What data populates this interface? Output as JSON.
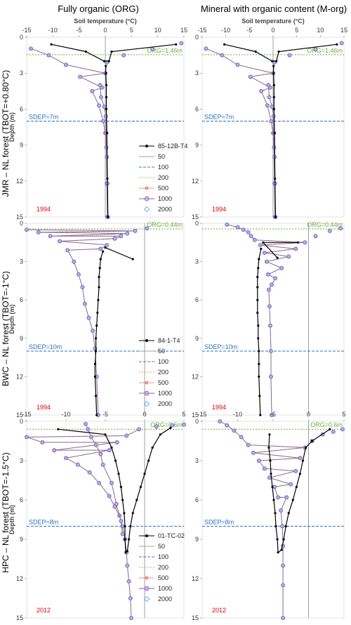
{
  "figure": {
    "col_titles": [
      "Fully organic (ORG)",
      "Mineral with organic content (M-org)"
    ],
    "row_titles": [
      "JMR – NL forest (TBOT=+0.80°C)",
      "BWC – NL forest (TBOT=-1°C)",
      "HPC – NL forest (TBOT=-1.5°C)"
    ]
  },
  "colors": {
    "observed": "#000000",
    "line_50": "#a0a0a0",
    "line_100": "#3a7dd0",
    "line_200": "#f0a030",
    "line_500": "#e03030",
    "marker_1000": "#8a5cc0",
    "marker_2000": "#4aa0e8",
    "org_line": "#6aaa3a",
    "sdep_line": "#2a70c0",
    "year_text": "#e00000"
  },
  "chart_data": [
    {
      "type": "line",
      "panel": "JMR-ORG",
      "title": "Soil temperature (°C)",
      "ylabel": "Depth (m)",
      "xlim": [
        -15,
        15
      ],
      "ylim": [
        0,
        15
      ],
      "xticks": [
        -15,
        -10,
        -5,
        0,
        5,
        10,
        15
      ],
      "yticks": [
        0,
        3,
        6,
        9,
        12,
        15
      ],
      "org_depth": 1.46,
      "org_label": "ORG=1.46m",
      "sdep_depth": 7,
      "sdep_label": "SDEP=7m",
      "year": "1994",
      "legend": [
        "85-12B-T4",
        "50",
        "100",
        "200",
        "500",
        "1000",
        "2000"
      ],
      "observed": {
        "name": "85-12B-T4",
        "points": [
          [
            -10.3,
            0.6
          ],
          [
            -3.7,
            1.2
          ],
          [
            -0.2,
            2.0
          ],
          [
            0.1,
            2.4
          ],
          [
            0.1,
            3.0
          ],
          [
            0.2,
            4.0
          ],
          [
            0.2,
            5.0
          ],
          [
            0.2,
            6.0
          ],
          [
            0.3,
            8.0
          ],
          [
            0.4,
            11.8
          ],
          [
            0.5,
            15.0
          ],
          [
            0.7,
            2.0
          ],
          [
            1.2,
            1.2
          ],
          [
            13.5,
            0.6
          ]
        ],
        "path_order": [
          0,
          1,
          2,
          11,
          12,
          13
        ]
      },
      "simulated": [
        [
          -14.2,
          0.95
        ],
        [
          -10.8,
          1.5
        ],
        [
          -7.5,
          2.3
        ],
        [
          -4.8,
          3.3
        ],
        [
          -2.5,
          4.5
        ],
        [
          -1.2,
          5.7
        ],
        [
          -0.4,
          7.0
        ],
        [
          0.0,
          8.0
        ],
        [
          0.2,
          9.2
        ],
        [
          0.3,
          12.2
        ],
        [
          0.4,
          15.0
        ],
        [
          -0.6,
          4.2
        ],
        [
          0.0,
          3.0
        ],
        [
          0.3,
          2.1
        ],
        [
          3.5,
          1.5
        ],
        [
          9.0,
          1.0
        ],
        [
          14.5,
          0.5
        ]
      ],
      "sim_center": [
        [
          -1.0,
          4.0
        ],
        [
          -0.8,
          5.0
        ],
        [
          -0.2,
          5.8
        ],
        [
          0.1,
          6.6
        ],
        [
          0.2,
          8.0
        ],
        [
          0.3,
          10.0
        ],
        [
          0.4,
          12.2
        ],
        [
          0.5,
          15.0
        ]
      ]
    },
    {
      "type": "line",
      "panel": "JMR-Morg",
      "title": "Soil temperature (°C)",
      "ylabel": "",
      "xlim": [
        -15,
        15
      ],
      "ylim": [
        0,
        15
      ],
      "xticks": [
        -15,
        -10,
        -5,
        0,
        5,
        10,
        15
      ],
      "yticks": [
        0,
        3,
        6,
        9,
        12,
        15
      ],
      "org_depth": 1.46,
      "org_label": "ORG=1.46m",
      "sdep_depth": 7,
      "sdep_label": "SDEP=7m",
      "year": "1994",
      "legend": [],
      "observed": {
        "name": "85-12B-T4",
        "points": [
          [
            -10.3,
            0.6
          ],
          [
            -3.7,
            1.2
          ],
          [
            -0.2,
            2.0
          ],
          [
            0.1,
            2.4
          ],
          [
            0.1,
            3.0
          ],
          [
            0.2,
            4.0
          ],
          [
            0.2,
            5.0
          ],
          [
            0.2,
            6.0
          ],
          [
            0.3,
            8.0
          ],
          [
            0.4,
            11.8
          ],
          [
            0.5,
            15.0
          ],
          [
            0.7,
            2.0
          ],
          [
            1.2,
            1.2
          ],
          [
            13.5,
            0.6
          ]
        ],
        "path_order": [
          0,
          1,
          2,
          11,
          12,
          13
        ]
      },
      "simulated": [
        [
          -14.2,
          0.95
        ],
        [
          -10.8,
          1.5
        ],
        [
          -7.5,
          2.3
        ],
        [
          -4.8,
          3.3
        ],
        [
          -2.5,
          4.5
        ],
        [
          -1.2,
          5.7
        ],
        [
          -0.4,
          7.0
        ],
        [
          0.0,
          8.0
        ],
        [
          0.2,
          9.2
        ],
        [
          0.3,
          12.2
        ],
        [
          0.4,
          15.0
        ],
        [
          -0.6,
          4.2
        ],
        [
          0.0,
          3.0
        ],
        [
          0.3,
          2.1
        ],
        [
          3.5,
          1.5
        ],
        [
          9.0,
          1.0
        ],
        [
          14.5,
          0.5
        ]
      ],
      "sim_center": [
        [
          -1.0,
          4.0
        ],
        [
          -0.8,
          5.0
        ],
        [
          -0.2,
          5.8
        ],
        [
          0.1,
          6.6
        ],
        [
          0.2,
          8.0
        ],
        [
          0.3,
          10.0
        ],
        [
          0.4,
          12.2
        ],
        [
          0.5,
          15.0
        ]
      ]
    },
    {
      "type": "line",
      "panel": "BWC-ORG",
      "title": "",
      "ylabel": "Depth (m)",
      "xlim": [
        -15,
        5
      ],
      "ylim": [
        0,
        15
      ],
      "xticks": [],
      "yticks": [
        0,
        3,
        6,
        9,
        12,
        15
      ],
      "org_depth": 0.44,
      "org_label": "ORG=0.44m",
      "sdep_depth": 10,
      "sdep_label": "SDEP=10m",
      "year": "1994",
      "legend": [
        "84-1-T4",
        "50",
        "100",
        "200",
        "500",
        "1000",
        "2000"
      ],
      "observed": {
        "name": "84-1-T4",
        "points": [
          [
            -5.0,
            1.9
          ],
          [
            -5.3,
            2.2
          ],
          [
            -5.6,
            2.8
          ],
          [
            -5.7,
            3.5
          ],
          [
            -5.8,
            4.2
          ],
          [
            -5.8,
            5.0
          ],
          [
            -5.9,
            6.0
          ],
          [
            -6.0,
            7.0
          ],
          [
            -6.1,
            8.0
          ],
          [
            -6.2,
            9.0
          ],
          [
            -6.2,
            10.0
          ],
          [
            -6.3,
            11.0
          ],
          [
            -6.3,
            12.0
          ],
          [
            -6.2,
            13.5
          ],
          [
            -6.1,
            15.0
          ],
          [
            -1.5,
            2.8
          ]
        ],
        "path_order": [
          15,
          0
        ]
      },
      "simulated": [
        [
          -15.0,
          0.5
        ],
        [
          -13.5,
          0.7
        ],
        [
          -12.0,
          1.0
        ],
        [
          -10.8,
          1.4
        ],
        [
          -9.8,
          2.1
        ],
        [
          -9.0,
          3.0
        ],
        [
          -8.4,
          4.0
        ],
        [
          -7.9,
          5.0
        ],
        [
          -7.6,
          6.3
        ],
        [
          -7.1,
          7.4
        ],
        [
          -6.6,
          8.4
        ],
        [
          -6.3,
          9.8
        ],
        [
          -6.1,
          12.0
        ],
        [
          -5.9,
          15.0
        ],
        [
          -5.6,
          2.0
        ],
        [
          -4.8,
          1.7
        ],
        [
          -3.8,
          1.2
        ],
        [
          -3.0,
          1.0
        ],
        [
          -2.2,
          0.8
        ],
        [
          -1.2,
          0.6
        ],
        [
          0.3,
          0.4
        ]
      ]
    },
    {
      "type": "line",
      "panel": "BWC-Morg",
      "title": "",
      "ylabel": "",
      "xlim": [
        -15,
        5
      ],
      "ylim": [
        0,
        15
      ],
      "xticks": [],
      "yticks": [
        0,
        3,
        6,
        9,
        12,
        15
      ],
      "org_depth": 0.44,
      "org_label": "ORG=0.44m",
      "sdep_depth": 10,
      "sdep_label": "SDEP=10m",
      "year": "1994",
      "legend": [],
      "observed": {
        "name": "84-1-T4",
        "points": [
          [
            -6.4,
            1.5
          ],
          [
            -6.7,
            2.0
          ],
          [
            -7.0,
            2.8
          ],
          [
            -7.1,
            3.5
          ],
          [
            -7.2,
            4.2
          ],
          [
            -7.2,
            5.0
          ],
          [
            -7.2,
            6.0
          ],
          [
            -7.2,
            7.0
          ],
          [
            -7.1,
            8.0
          ],
          [
            -7.1,
            9.0
          ],
          [
            -7.0,
            10.0
          ],
          [
            -7.0,
            11.0
          ],
          [
            -7.0,
            12.0
          ],
          [
            -6.9,
            13.5
          ],
          [
            -6.8,
            15.0
          ],
          [
            -1.5,
            1.5
          ],
          [
            -4.4,
            2.7
          ]
        ],
        "path_order": [
          15,
          0,
          16
        ]
      },
      "simulated": [
        [
          -11.5,
          0.1
        ],
        [
          -10.0,
          0.3
        ],
        [
          -9.2,
          0.5
        ],
        [
          -8.5,
          0.7
        ],
        [
          -8.1,
          1.0
        ],
        [
          -7.6,
          1.3
        ],
        [
          -6.8,
          1.7
        ],
        [
          -6.2,
          2.3
        ],
        [
          -5.9,
          3.0
        ],
        [
          -5.7,
          4.0
        ],
        [
          -5.6,
          5.2
        ],
        [
          -5.5,
          6.5
        ],
        [
          -5.4,
          8.0
        ],
        [
          -5.3,
          10.0
        ],
        [
          -5.3,
          12.0
        ],
        [
          -5.2,
          15.0
        ],
        [
          -5.2,
          4.8
        ],
        [
          -4.7,
          4.3
        ],
        [
          -3.8,
          3.5
        ],
        [
          -2.8,
          2.6
        ],
        [
          -1.8,
          2.0
        ],
        [
          -0.5,
          1.5
        ],
        [
          1.0,
          1.0
        ],
        [
          3.0,
          0.6
        ],
        [
          4.5,
          0.4
        ]
      ]
    },
    {
      "type": "line",
      "panel": "HPC-ORG",
      "title": "",
      "ylabel": "Depth (m)",
      "xlim": [
        -15,
        5
      ],
      "ylim": [
        0,
        15
      ],
      "xticks": [
        -15,
        -10,
        -5,
        0,
        5
      ],
      "yticks": [
        0,
        3,
        6,
        9,
        12,
        15
      ],
      "org_depth": 0.6,
      "org_label": "ORG=0.6m",
      "sdep_depth": 8,
      "sdep_label": "SDEP=8m",
      "year": "2012",
      "legend": [
        "01-TC-02",
        "50",
        "100",
        "200",
        "500",
        "1000",
        "2000"
      ],
      "observed": {
        "name": "01-TC-02",
        "points": [
          [
            -11.0,
            0.6
          ],
          [
            -5.0,
            1.0
          ],
          [
            -4.2,
            2.0
          ],
          [
            -3.7,
            3.0
          ],
          [
            -3.3,
            4.0
          ],
          [
            -3.0,
            5.0
          ],
          [
            -2.8,
            6.0
          ],
          [
            -2.6,
            7.0
          ],
          [
            -2.5,
            8.0
          ],
          [
            -2.5,
            9.0
          ],
          [
            -2.4,
            10.0
          ],
          [
            -2.2,
            9.9
          ],
          [
            -2.0,
            9.0
          ],
          [
            -1.8,
            8.0
          ],
          [
            -1.5,
            7.0
          ],
          [
            -1.0,
            6.0
          ],
          [
            -0.5,
            5.0
          ],
          [
            0.0,
            4.0
          ],
          [
            0.5,
            3.0
          ],
          [
            1.0,
            2.0
          ],
          [
            2.0,
            1.0
          ],
          [
            3.3,
            0.5
          ]
        ]
      },
      "simulated": [
        [
          -15.0,
          1.2
        ],
        [
          -13.0,
          1.6
        ],
        [
          -11.5,
          2.2
        ],
        [
          -10.0,
          2.8
        ],
        [
          -8.5,
          3.3
        ],
        [
          -7.0,
          3.9
        ],
        [
          -5.8,
          4.7
        ],
        [
          -4.5,
          5.7
        ],
        [
          -3.8,
          6.5
        ],
        [
          -3.2,
          7.2
        ],
        [
          -2.8,
          8.0
        ],
        [
          -2.5,
          9.0
        ],
        [
          -2.3,
          10.0
        ],
        [
          -2.2,
          11.0
        ],
        [
          -2.0,
          12.2
        ],
        [
          -1.8,
          13.5
        ],
        [
          -1.7,
          15.0
        ],
        [
          -4.5,
          2.2
        ],
        [
          -3.5,
          1.6
        ],
        [
          -2.3,
          1.1
        ],
        [
          -0.7,
          0.6
        ],
        [
          1.5,
          0.4
        ],
        [
          3.5,
          0.3
        ],
        [
          5.0,
          0.25
        ]
      ],
      "sim_upper": [
        [
          -7.5,
          0.2
        ],
        [
          -7.2,
          0.6
        ],
        [
          -6.8,
          1.2
        ],
        [
          -6.2,
          1.8
        ],
        [
          -5.6,
          2.5
        ],
        [
          -5.3,
          3.3
        ],
        [
          -4.2,
          4.7
        ],
        [
          -3.6,
          6.3
        ],
        [
          -3.0,
          7.6
        ],
        [
          -2.8,
          8.6
        ]
      ]
    },
    {
      "type": "line",
      "panel": "HPC-Morg",
      "title": "",
      "ylabel": "",
      "xlim": [
        -15,
        5
      ],
      "ylim": [
        0,
        15
      ],
      "xticks": [
        -15,
        -10,
        -5,
        0,
        5
      ],
      "yticks": [
        0,
        3,
        6,
        9,
        12,
        15
      ],
      "org_depth": 0.6,
      "org_label": "ORG=0.6m",
      "sdep_depth": 8,
      "sdep_label": "SDEP=8m",
      "year": "2012",
      "legend": [],
      "observed": {
        "name": "01-TC-02",
        "points": [
          [
            -5.5,
            1.0
          ],
          [
            -5.6,
            2.0
          ],
          [
            -5.4,
            3.0
          ],
          [
            -5.3,
            4.0
          ],
          [
            -5.1,
            5.0
          ],
          [
            -4.9,
            6.0
          ],
          [
            -4.7,
            7.0
          ],
          [
            -4.6,
            8.0
          ],
          [
            -4.4,
            9.0
          ],
          [
            -4.3,
            10.0
          ],
          [
            -3.8,
            9.8
          ],
          [
            -3.5,
            9.0
          ],
          [
            -3.2,
            8.0
          ],
          [
            -2.8,
            7.0
          ],
          [
            -2.2,
            6.0
          ],
          [
            -1.7,
            5.0
          ],
          [
            -1.2,
            4.0
          ],
          [
            -0.8,
            3.0
          ],
          [
            -0.4,
            2.0
          ],
          [
            0.5,
            1.5
          ],
          [
            3.0,
            0.6
          ]
        ]
      },
      "simulated": [
        [
          -12.5,
          0.0
        ],
        [
          -11.5,
          0.3
        ],
        [
          -10.5,
          0.7
        ],
        [
          -9.5,
          1.2
        ],
        [
          -8.5,
          1.8
        ],
        [
          -7.8,
          2.4
        ],
        [
          -7.0,
          3.0
        ],
        [
          -6.2,
          3.6
        ],
        [
          -5.5,
          4.3
        ],
        [
          -4.8,
          5.0
        ],
        [
          -4.3,
          5.8
        ],
        [
          -3.9,
          6.8
        ],
        [
          -3.7,
          8.0
        ],
        [
          -3.6,
          9.5
        ],
        [
          -3.6,
          11.0
        ],
        [
          -3.6,
          12.5
        ],
        [
          -3.6,
          15.0
        ],
        [
          -3.1,
          5.8
        ],
        [
          -2.5,
          4.8
        ],
        [
          -1.8,
          3.8
        ],
        [
          -1.2,
          2.8
        ],
        [
          -0.5,
          2.0
        ],
        [
          0.5,
          1.5
        ],
        [
          2.0,
          1.0
        ],
        [
          3.5,
          0.8
        ],
        [
          4.8,
          0.6
        ]
      ]
    }
  ]
}
